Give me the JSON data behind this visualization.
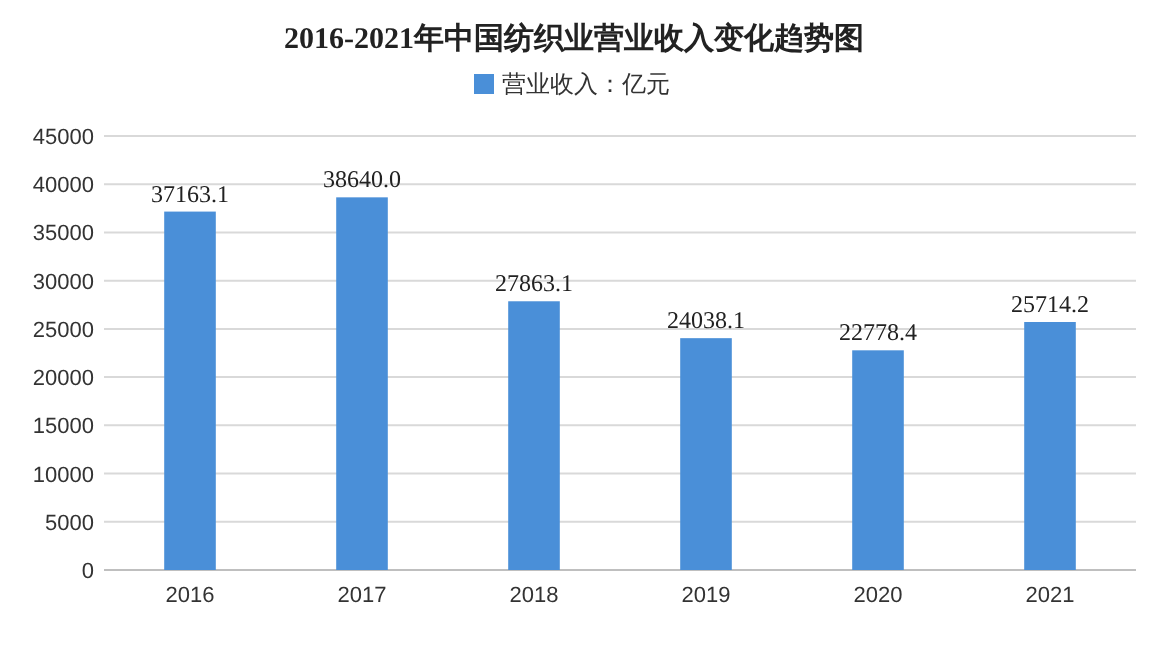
{
  "chart_data": {
    "type": "bar",
    "title": "2016-2021年中国纺织业营业收入变化趋势图",
    "categories": [
      "2016",
      "2017",
      "2018",
      "2019",
      "2020",
      "2021"
    ],
    "series": [
      {
        "name": "营业收入：亿元",
        "color": "#4a8fd8",
        "values": [
          37163.1,
          38640.0,
          27863.1,
          24038.1,
          22778.4,
          25714.2
        ],
        "value_labels": [
          "37163.1",
          "38640.0",
          "27863.1",
          "24038.1",
          "22778.4",
          "25714.2"
        ]
      }
    ],
    "ylim": [
      0,
      45000
    ],
    "yticks": [
      0,
      5000,
      10000,
      15000,
      20000,
      25000,
      30000,
      35000,
      40000,
      45000
    ],
    "grid": "y",
    "legend": "top"
  }
}
